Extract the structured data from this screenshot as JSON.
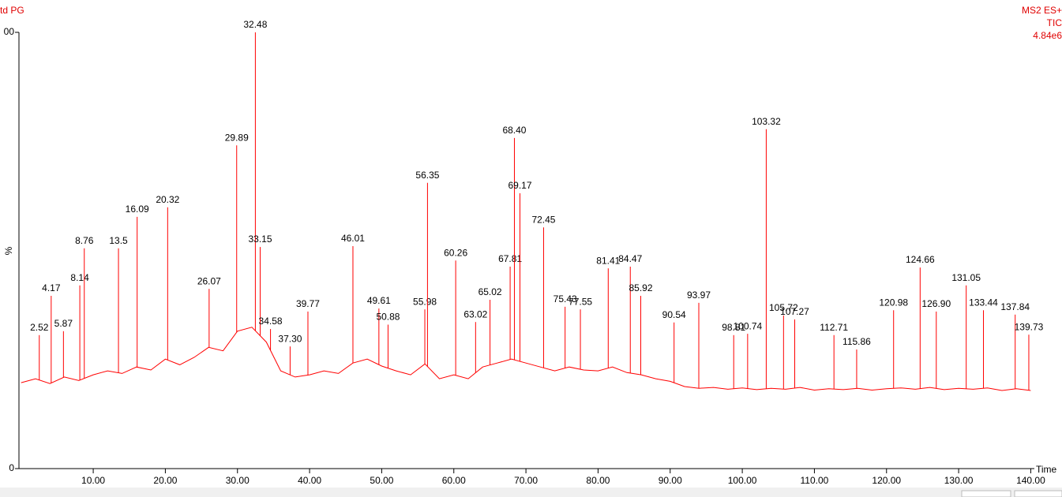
{
  "chart_data": {
    "type": "line",
    "title": "td PG",
    "annotations": [
      "MS2 ES+",
      "TIC",
      "4.84e6"
    ],
    "x_label": "Time",
    "y_label": "%",
    "color": "#ff0000",
    "xlim": [
      -0.3,
      140.5
    ],
    "ylim": [
      0,
      100
    ],
    "xticks": [
      {
        "value": 10,
        "label": "10.00"
      },
      {
        "value": 20,
        "label": "20.00"
      },
      {
        "value": 30,
        "label": "30.00"
      },
      {
        "value": 40,
        "label": "40.00"
      },
      {
        "value": 50,
        "label": "50.00"
      },
      {
        "value": 60,
        "label": "60.00"
      },
      {
        "value": 70,
        "label": "70.00"
      },
      {
        "value": 80,
        "label": "80.00"
      },
      {
        "value": 90,
        "label": "90.00"
      },
      {
        "value": 100,
        "label": "100.00"
      },
      {
        "value": 110,
        "label": "110.00"
      },
      {
        "value": 120,
        "label": "120.00"
      },
      {
        "value": 130,
        "label": "130.00"
      },
      {
        "value": 140,
        "label": "140.00"
      }
    ],
    "yticks": [
      {
        "value": 100,
        "label": "00"
      },
      0
    ],
    "trace": {
      "x": [
        0,
        2,
        4,
        6,
        8,
        10,
        12,
        14,
        16,
        18,
        20,
        22,
        24,
        26,
        28,
        30,
        32,
        34,
        36,
        38,
        40,
        42,
        44,
        46,
        48,
        50,
        52,
        54,
        56,
        58,
        60,
        62,
        64,
        66,
        68,
        70,
        72,
        74,
        76,
        78,
        80,
        82,
        84,
        86,
        88,
        90,
        92,
        94,
        96,
        98,
        100,
        102,
        104,
        106,
        108,
        110,
        112,
        114,
        116,
        118,
        120,
        122,
        124,
        126,
        128,
        130,
        132,
        134,
        136,
        138,
        140
      ],
      "values": [
        19.7,
        20.6,
        19.5,
        21,
        20.2,
        21.5,
        22.4,
        21.8,
        23.3,
        22.6,
        25.1,
        23.8,
        25.5,
        27.8,
        27,
        31.5,
        32.4,
        29,
        22.4,
        21,
        21.5,
        22.4,
        21.8,
        24.2,
        25.1,
        23.5,
        22.4,
        21.5,
        24,
        20.6,
        21.5,
        20.6,
        23.3,
        24.2,
        25.1,
        24.2,
        23.3,
        22.4,
        23.3,
        22.6,
        22.4,
        23.3,
        22,
        21.5,
        20.6,
        20,
        18.8,
        18.4,
        18.6,
        18.2,
        18.5,
        18.1,
        18.4,
        18.2,
        18.6,
        18,
        18.3,
        18.1,
        18.4,
        18,
        18.3,
        18.5,
        18.2,
        18.6,
        18.1,
        18.4,
        18.2,
        18.5,
        17.9,
        18.3,
        17.9
      ]
    },
    "peaks": {
      "x": [
        2.52,
        4.17,
        5.87,
        8.14,
        8.76,
        13.5,
        16.09,
        20.32,
        26.07,
        29.89,
        32.48,
        33.15,
        34.58,
        {
          "value": 37.3,
          "label": "37.30"
        },
        39.77,
        46.01,
        49.61,
        50.88,
        55.98,
        56.35,
        60.26,
        63.02,
        65.02,
        67.81,
        {
          "value": 68.4,
          "label": "68.40"
        },
        69.17,
        72.45,
        75.43,
        77.55,
        81.41,
        84.47,
        85.92,
        90.54,
        93.97,
        98.81,
        100.74,
        103.32,
        105.72,
        107.27,
        112.71,
        115.86,
        120.98,
        124.66,
        {
          "value": 126.9,
          "label": "126.90"
        },
        131.05,
        133.44,
        137.84,
        139.73
      ],
      "values": [
        30.6,
        39.6,
        31.5,
        42,
        50.5,
        50.5,
        57.7,
        59.9,
        41.2,
        74.1,
        100,
        50.8,
        32,
        28,
        36,
        51,
        36.7,
        33,
        36.5,
        65.5,
        47.7,
        33.6,
        38.7,
        46.3,
        75.8,
        63.1,
        55.3,
        37.1,
        36.5,
        45.9,
        46.3,
        39.6,
        33.5,
        38,
        30.6,
        30.9,
        77.8,
        35.1,
        34.2,
        30.6,
        27.3,
        36.3,
        46.1,
        36,
        42,
        36.3,
        35.3,
        30.7
      ]
    }
  }
}
